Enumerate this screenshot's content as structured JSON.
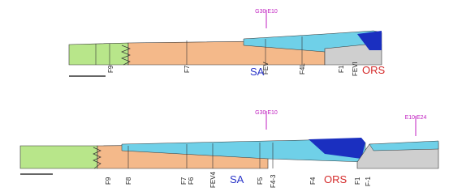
{
  "top_section": {
    "marker": "G30 E10",
    "faults": [
      "F9",
      "F7",
      "FEV",
      "F4L",
      "F1",
      "FEVI"
    ],
    "unit_left": "SA",
    "unit_right": "ORS"
  },
  "bottom_section": {
    "marker_1": "G30 E10",
    "marker_2": "E10 E24",
    "faults": [
      "F9",
      "F8",
      "F7",
      "F6",
      "FEV4",
      "F5",
      "F4-3",
      "F4",
      "F1",
      "F-1"
    ],
    "unit_left": "SA",
    "unit_right": "ORS"
  }
}
